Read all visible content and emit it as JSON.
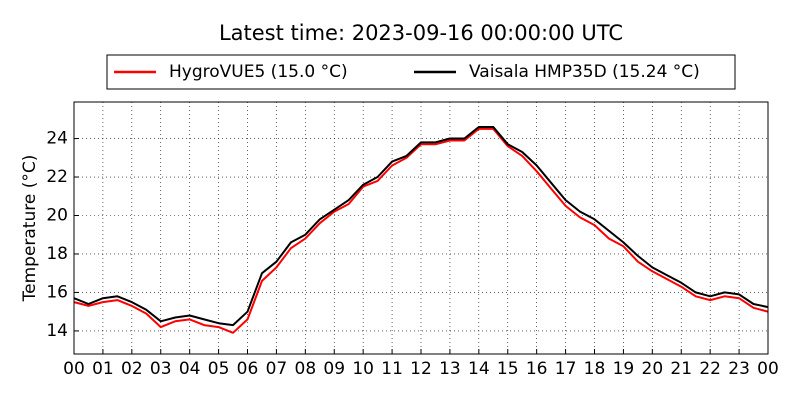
{
  "chart_data": {
    "type": "line",
    "title": "Latest time: 2023-09-16 00:00:00 UTC",
    "ylabel": "Temperature (°C)",
    "x": [
      0,
      0.5,
      1,
      1.5,
      2,
      2.5,
      3,
      3.5,
      4,
      4.5,
      5,
      5.5,
      6,
      6.5,
      7,
      7.5,
      8,
      8.5,
      9,
      9.5,
      10,
      10.5,
      11,
      11.5,
      12,
      12.5,
      13,
      13.5,
      14,
      14.5,
      15,
      15.5,
      16,
      16.5,
      17,
      17.5,
      18,
      18.5,
      19,
      19.5,
      20,
      20.5,
      21,
      21.5,
      22,
      22.5,
      23,
      23.5,
      24
    ],
    "series": [
      {
        "name": "HygroVUE5 (15.0 °C)",
        "color": "#ff0000",
        "values": [
          15.5,
          15.3,
          15.5,
          15.6,
          15.3,
          14.9,
          14.2,
          14.5,
          14.6,
          14.3,
          14.2,
          13.9,
          14.6,
          16.6,
          17.3,
          18.3,
          18.8,
          19.6,
          20.2,
          20.6,
          21.5,
          21.8,
          22.6,
          23.0,
          23.7,
          23.7,
          23.9,
          23.9,
          24.5,
          24.5,
          23.6,
          23.1,
          22.3,
          21.4,
          20.5,
          19.9,
          19.5,
          18.8,
          18.4,
          17.6,
          17.1,
          16.7,
          16.3,
          15.8,
          15.6,
          15.8,
          15.7,
          15.2,
          15.0
        ]
      },
      {
        "name": "Vaisala HMP35D (15.24 °C)",
        "color": "#000000",
        "values": [
          15.7,
          15.4,
          15.7,
          15.8,
          15.5,
          15.1,
          14.5,
          14.7,
          14.8,
          14.6,
          14.4,
          14.3,
          15.0,
          17.0,
          17.6,
          18.6,
          19.0,
          19.8,
          20.3,
          20.8,
          21.6,
          22.0,
          22.8,
          23.1,
          23.8,
          23.8,
          24.0,
          24.0,
          24.6,
          24.6,
          23.7,
          23.3,
          22.6,
          21.7,
          20.8,
          20.2,
          19.8,
          19.2,
          18.6,
          17.9,
          17.3,
          16.9,
          16.5,
          16.0,
          15.8,
          16.0,
          15.9,
          15.4,
          15.24
        ]
      }
    ],
    "xlim": [
      0,
      24
    ],
    "xticks": [
      {
        "value": 0,
        "label": "00"
      },
      {
        "value": 1,
        "label": "01"
      },
      {
        "value": 2,
        "label": "02"
      },
      {
        "value": 3,
        "label": "03"
      },
      {
        "value": 4,
        "label": "04"
      },
      {
        "value": 5,
        "label": "05"
      },
      {
        "value": 6,
        "label": "06"
      },
      {
        "value": 7,
        "label": "07"
      },
      {
        "value": 8,
        "label": "08"
      },
      {
        "value": 9,
        "label": "09"
      },
      {
        "value": 10,
        "label": "10"
      },
      {
        "value": 11,
        "label": "11"
      },
      {
        "value": 12,
        "label": "12"
      },
      {
        "value": 13,
        "label": "13"
      },
      {
        "value": 14,
        "label": "14"
      },
      {
        "value": 15,
        "label": "15"
      },
      {
        "value": 16,
        "label": "16"
      },
      {
        "value": 17,
        "label": "17"
      },
      {
        "value": 18,
        "label": "18"
      },
      {
        "value": 19,
        "label": "19"
      },
      {
        "value": 20,
        "label": "20"
      },
      {
        "value": 21,
        "label": "21"
      },
      {
        "value": 22,
        "label": "22"
      },
      {
        "value": 23,
        "label": "23"
      },
      {
        "value": 24,
        "label": "00"
      }
    ],
    "ylim": [
      12.8,
      25.9
    ],
    "yticks": [
      14,
      16,
      18,
      20,
      22,
      24
    ],
    "grid": true
  }
}
